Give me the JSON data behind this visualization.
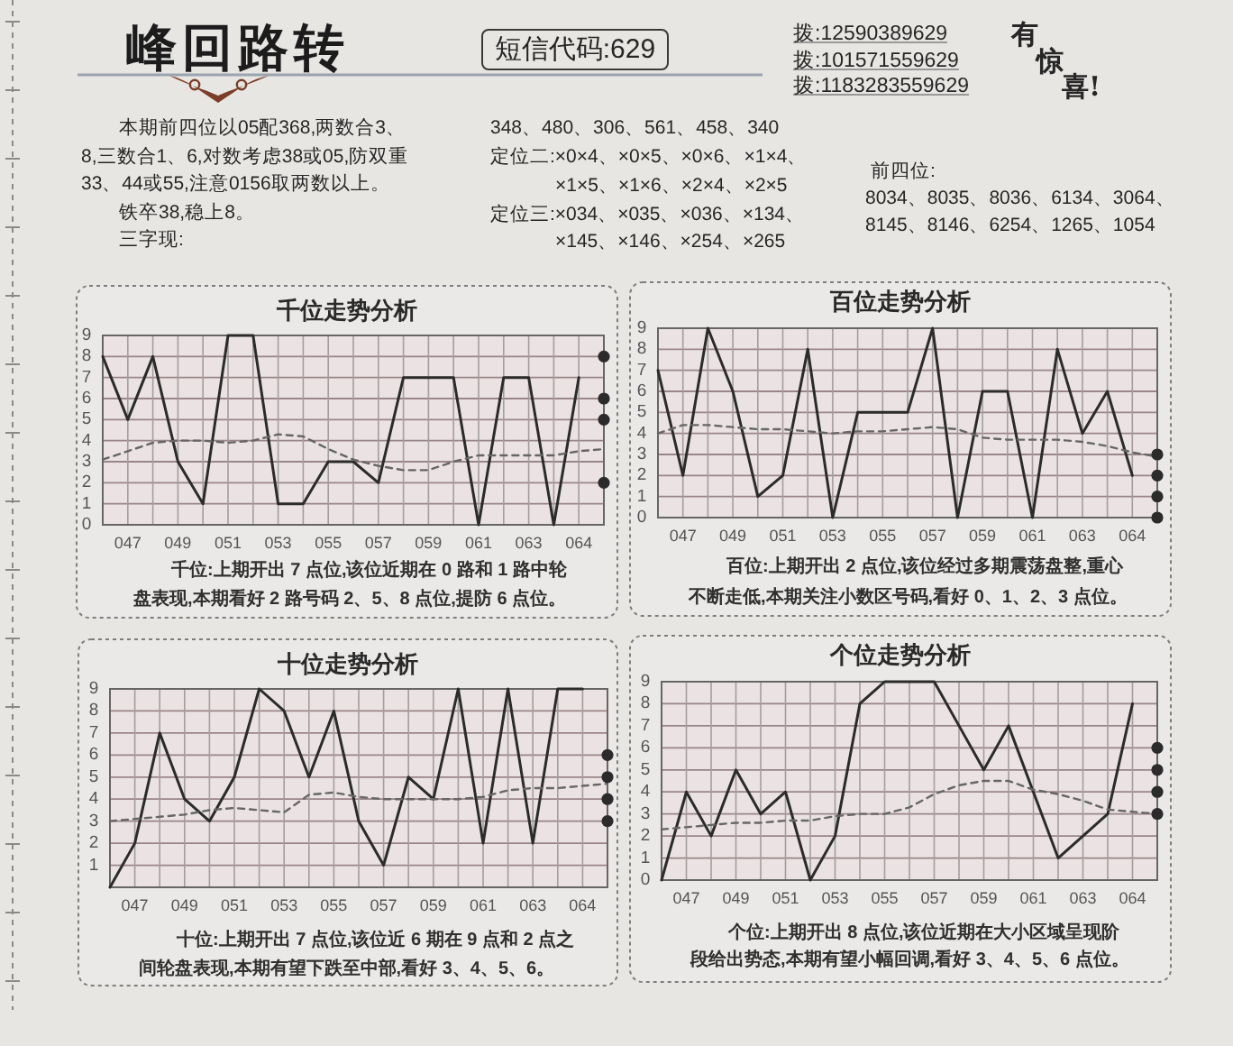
{
  "chart_data": [
    {
      "type": "other",
      "title": "峰回路转",
      "annotations": [
        "短信代码:629",
        "拨:12590389629",
        "拨:101571559629",
        "拨:1183283559629",
        "有惊喜!",
        "本期前四位以05配368,两数合3、8,三数合1、6,对数考虑38或05,防双重33、44或55,注意0156取两数以上。",
        "铁卒38,稳上8。",
        "三字现:",
        "348、480、306、561、458、340",
        "定位二:×0×4、×0×5、×0×6、×1×4、×1×5、×1×6、×2×4、×2×5",
        "定位三:×034、×035、×036、×134、×145、×146、×254、×265",
        "前四位:",
        "8034、8035、8036、6134、3064、8145、8146、6254、1265、1054"
      ]
    },
    {
      "type": "line",
      "title": "千位走势分析",
      "categories": [
        null,
        "047",
        null,
        "049",
        null,
        "051",
        null,
        "053",
        null,
        "055",
        null,
        "057",
        null,
        "059",
        null,
        "061",
        null,
        "063",
        null,
        "064",
        null
      ],
      "ylim": [
        0,
        9
      ],
      "yticks": [
        0,
        1,
        2,
        3,
        4,
        5,
        6,
        7,
        8,
        9
      ],
      "grid": true,
      "series": [
        {
          "color": "#2b2b2b",
          "values": [
            8,
            5,
            8,
            3,
            1,
            9,
            9,
            1,
            1,
            3,
            3,
            2,
            7,
            7,
            7,
            0,
            7,
            7,
            0,
            7,
            null
          ]
        },
        {
          "color": "#666666",
          "line_style": "dashed",
          "values": [
            3.1,
            3.5,
            3.9,
            4.0,
            4.0,
            3.9,
            4.0,
            4.3,
            4.2,
            3.6,
            3.1,
            2.8,
            2.6,
            2.6,
            3.0,
            3.3,
            3.3,
            3.3,
            3.3,
            3.5,
            3.6
          ]
        },
        {
          "type": "scatter",
          "marker": "circle",
          "color": "#2b2b2b",
          "values": [
            null,
            null,
            null,
            null,
            null,
            null,
            null,
            null,
            null,
            null,
            null,
            null,
            null,
            null,
            null,
            null,
            null,
            null,
            null,
            null,
            8
          ]
        },
        {
          "type": "scatter",
          "marker": "circle",
          "color": "#2b2b2b",
          "values": [
            null,
            null,
            null,
            null,
            null,
            null,
            null,
            null,
            null,
            null,
            null,
            null,
            null,
            null,
            null,
            null,
            null,
            null,
            null,
            null,
            6
          ]
        },
        {
          "type": "scatter",
          "marker": "circle",
          "color": "#2b2b2b",
          "values": [
            null,
            null,
            null,
            null,
            null,
            null,
            null,
            null,
            null,
            null,
            null,
            null,
            null,
            null,
            null,
            null,
            null,
            null,
            null,
            null,
            5
          ]
        },
        {
          "type": "scatter",
          "marker": "circle",
          "color": "#2b2b2b",
          "values": [
            null,
            null,
            null,
            null,
            null,
            null,
            null,
            null,
            null,
            null,
            null,
            null,
            null,
            null,
            null,
            null,
            null,
            null,
            null,
            null,
            2
          ]
        }
      ],
      "annotations": [
        "千位:上期开出 7 点位,该位近期在 0 路和 1 路中轮盘表现,本期看好 2 路号码 2、5、8 点位,提防 6 点位。"
      ]
    },
    {
      "type": "line",
      "title": "百位走势分析",
      "categories": [
        null,
        "047",
        null,
        "049",
        null,
        "051",
        null,
        "053",
        null,
        "055",
        null,
        "057",
        null,
        "059",
        null,
        "061",
        null,
        "063",
        null,
        "064",
        null
      ],
      "ylim": [
        0,
        9
      ],
      "yticks": [
        0,
        1,
        2,
        3,
        4,
        5,
        6,
        7,
        8,
        9
      ],
      "grid": true,
      "series": [
        {
          "color": "#2b2b2b",
          "values": [
            7,
            2,
            9,
            6,
            1,
            2,
            8,
            0,
            5,
            5,
            5,
            9,
            0,
            6,
            6,
            0,
            8,
            4,
            6,
            2,
            null
          ]
        },
        {
          "color": "#666666",
          "line_style": "dashed",
          "values": [
            4.0,
            4.4,
            4.4,
            4.3,
            4.2,
            4.2,
            4.1,
            4.0,
            4.1,
            4.1,
            4.2,
            4.3,
            4.2,
            3.8,
            3.7,
            3.7,
            3.7,
            3.6,
            3.4,
            3.1,
            2.9
          ]
        },
        {
          "type": "scatter",
          "marker": "circle",
          "color": "#2b2b2b",
          "values": [
            null,
            null,
            null,
            null,
            null,
            null,
            null,
            null,
            null,
            null,
            null,
            null,
            null,
            null,
            null,
            null,
            null,
            null,
            null,
            null,
            3
          ]
        },
        {
          "type": "scatter",
          "marker": "circle",
          "color": "#2b2b2b",
          "values": [
            null,
            null,
            null,
            null,
            null,
            null,
            null,
            null,
            null,
            null,
            null,
            null,
            null,
            null,
            null,
            null,
            null,
            null,
            null,
            null,
            2
          ]
        },
        {
          "type": "scatter",
          "marker": "circle",
          "color": "#2b2b2b",
          "values": [
            null,
            null,
            null,
            null,
            null,
            null,
            null,
            null,
            null,
            null,
            null,
            null,
            null,
            null,
            null,
            null,
            null,
            null,
            null,
            null,
            1
          ]
        },
        {
          "type": "scatter",
          "marker": "circle",
          "color": "#2b2b2b",
          "values": [
            null,
            null,
            null,
            null,
            null,
            null,
            null,
            null,
            null,
            null,
            null,
            null,
            null,
            null,
            null,
            null,
            null,
            null,
            null,
            null,
            0
          ]
        }
      ],
      "annotations": [
        "百位:上期开出 2 点位,该位经过多期震荡盘整,重心不断走低,本期关注小数区号码,看好 0、1、2、3 点位。"
      ]
    },
    {
      "type": "line",
      "title": "十位走势分析",
      "categories": [
        null,
        "047",
        null,
        "049",
        null,
        "051",
        null,
        "053",
        null,
        "055",
        null,
        "057",
        null,
        "059",
        null,
        "061",
        null,
        "063",
        null,
        "064",
        null
      ],
      "ylim": [
        0,
        9
      ],
      "yticks": [
        {
          "value": 0,
          "label": null
        },
        1,
        2,
        3,
        4,
        5,
        6,
        7,
        8,
        9
      ],
      "grid": true,
      "series": [
        {
          "color": "#2b2b2b",
          "values": [
            0,
            2,
            7,
            4,
            3,
            5,
            9,
            8,
            5,
            8,
            3,
            1,
            5,
            4,
            9,
            2,
            9,
            2,
            9,
            9,
            null
          ]
        },
        {
          "color": "#666666",
          "line_style": "dashed",
          "values": [
            3.0,
            3.1,
            3.2,
            3.3,
            3.5,
            3.6,
            3.5,
            3.4,
            4.2,
            4.3,
            4.1,
            4.0,
            4.0,
            4.0,
            4.0,
            4.1,
            4.4,
            4.5,
            4.5,
            4.6,
            4.7
          ]
        },
        {
          "type": "scatter",
          "marker": "circle",
          "color": "#2b2b2b",
          "values": [
            null,
            null,
            null,
            null,
            null,
            null,
            null,
            null,
            null,
            null,
            null,
            null,
            null,
            null,
            null,
            null,
            null,
            null,
            null,
            null,
            6
          ]
        },
        {
          "type": "scatter",
          "marker": "circle",
          "color": "#2b2b2b",
          "values": [
            null,
            null,
            null,
            null,
            null,
            null,
            null,
            null,
            null,
            null,
            null,
            null,
            null,
            null,
            null,
            null,
            null,
            null,
            null,
            null,
            5
          ]
        },
        {
          "type": "scatter",
          "marker": "circle",
          "color": "#2b2b2b",
          "values": [
            null,
            null,
            null,
            null,
            null,
            null,
            null,
            null,
            null,
            null,
            null,
            null,
            null,
            null,
            null,
            null,
            null,
            null,
            null,
            null,
            4
          ]
        },
        {
          "type": "scatter",
          "marker": "circle",
          "color": "#2b2b2b",
          "values": [
            null,
            null,
            null,
            null,
            null,
            null,
            null,
            null,
            null,
            null,
            null,
            null,
            null,
            null,
            null,
            null,
            null,
            null,
            null,
            null,
            3
          ]
        }
      ],
      "annotations": [
        "十位:上期开出 7 点位,该位近 6 期在 9 点和 2 点之间轮盘表现,本期有望下跌至中部,看好 3、4、5、6。"
      ]
    },
    {
      "type": "line",
      "title": "个位走势分析",
      "categories": [
        null,
        "047",
        null,
        "049",
        null,
        "051",
        null,
        "053",
        null,
        "055",
        null,
        "057",
        null,
        "059",
        null,
        "061",
        null,
        "063",
        null,
        "064",
        null
      ],
      "ylim": [
        0,
        9
      ],
      "yticks": [
        0,
        1,
        2,
        3,
        4,
        5,
        6,
        7,
        8,
        9
      ],
      "grid": true,
      "series": [
        {
          "color": "#2b2b2b",
          "values": [
            0,
            4,
            2,
            5,
            3,
            4,
            0,
            2,
            8,
            9,
            9,
            9,
            7,
            5,
            7,
            4,
            1,
            2,
            3,
            8,
            null
          ]
        },
        {
          "color": "#666666",
          "line_style": "dashed",
          "values": [
            2.3,
            2.4,
            2.5,
            2.6,
            2.6,
            2.7,
            2.7,
            2.9,
            3.0,
            3.0,
            3.3,
            3.9,
            4.3,
            4.5,
            4.5,
            4.1,
            3.9,
            3.6,
            3.2,
            3.1,
            3.0
          ]
        },
        {
          "type": "scatter",
          "marker": "circle",
          "color": "#2b2b2b",
          "values": [
            null,
            null,
            null,
            null,
            null,
            null,
            null,
            null,
            null,
            null,
            null,
            null,
            null,
            null,
            null,
            null,
            null,
            null,
            null,
            null,
            6
          ]
        },
        {
          "type": "scatter",
          "marker": "circle",
          "color": "#2b2b2b",
          "values": [
            null,
            null,
            null,
            null,
            null,
            null,
            null,
            null,
            null,
            null,
            null,
            null,
            null,
            null,
            null,
            null,
            null,
            null,
            null,
            null,
            5
          ]
        },
        {
          "type": "scatter",
          "marker": "circle",
          "color": "#2b2b2b",
          "values": [
            null,
            null,
            null,
            null,
            null,
            null,
            null,
            null,
            null,
            null,
            null,
            null,
            null,
            null,
            null,
            null,
            null,
            null,
            null,
            null,
            4
          ]
        },
        {
          "type": "scatter",
          "marker": "circle",
          "color": "#2b2b2b",
          "values": [
            null,
            null,
            null,
            null,
            null,
            null,
            null,
            null,
            null,
            null,
            null,
            null,
            null,
            null,
            null,
            null,
            null,
            null,
            null,
            null,
            3
          ]
        }
      ],
      "annotations": [
        "个位:上期开出 8 点位,该位近期在大小区域呈现阶段给出势态,本期有望小幅回调,看好 3、4、5、6 点位。"
      ]
    }
  ]
}
